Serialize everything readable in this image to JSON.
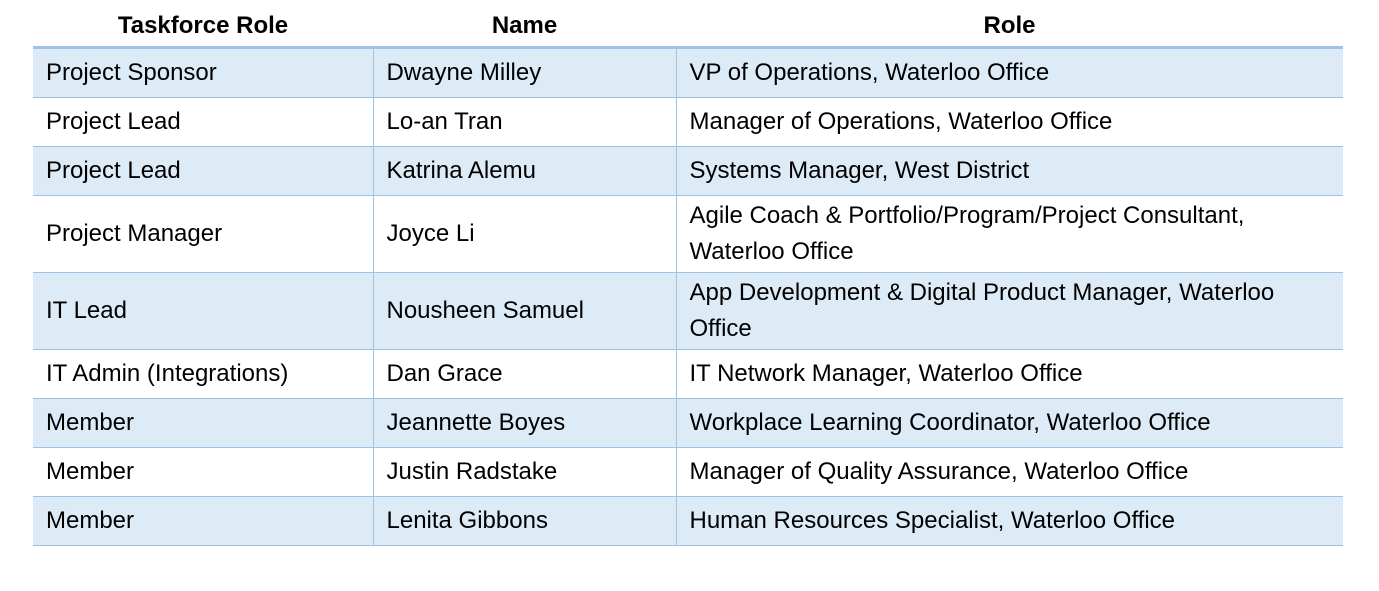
{
  "table": {
    "header": [
      "Taskforce Role",
      "Name",
      "Role"
    ],
    "rows": [
      [
        "Project Sponsor",
        "Dwayne Milley",
        "VP of Operations, Waterloo Office"
      ],
      [
        "Project Lead",
        "Lo-an Tran",
        "Manager of Operations, Waterloo Office"
      ],
      [
        "Project Lead",
        "Katrina Alemu",
        "Systems Manager, West District"
      ],
      [
        "Project Manager",
        "Joyce Li",
        "Agile Coach & Portfolio/Program/Project Consultant, Waterloo Office"
      ],
      [
        "IT Lead",
        "Nousheen Samuel",
        "App Development & Digital Product Manager, Waterloo Office"
      ],
      [
        "IT Admin (Integrations)",
        "Dan Grace",
        "IT Network Manager, Waterloo Office"
      ],
      [
        "Member",
        "Jeannette Boyes",
        "Workplace Learning Coordinator, Waterloo Office"
      ],
      [
        "Member",
        "Justin Radstake",
        "Manager of Quality Assurance, Waterloo Office"
      ],
      [
        "Member",
        "Lenita Gibbons",
        "Human Resources Specialist, Waterloo Office"
      ]
    ]
  }
}
